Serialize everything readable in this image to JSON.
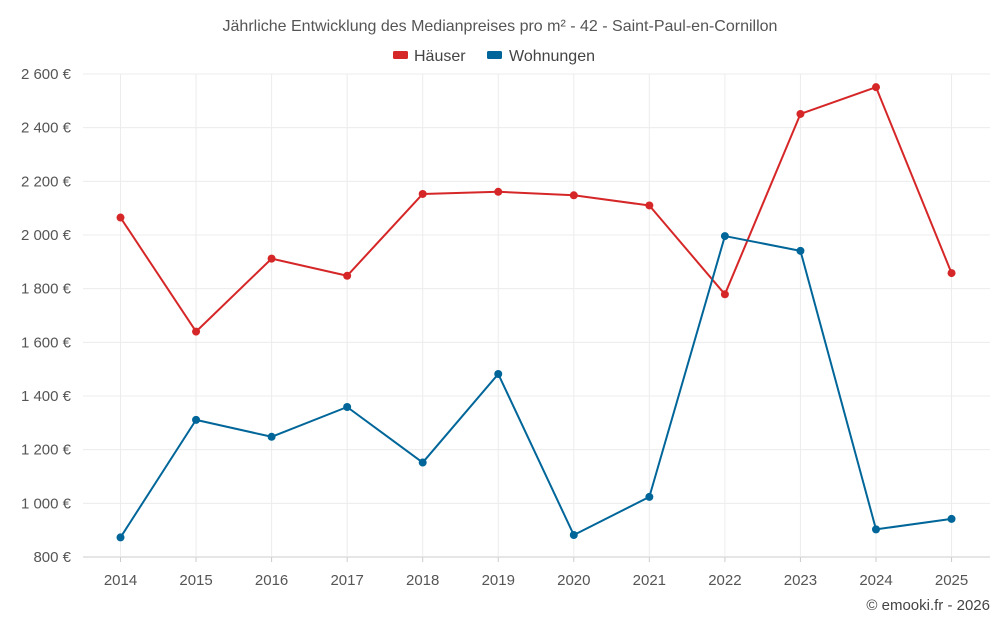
{
  "chart_data": {
    "type": "line",
    "title": "Jährliche Entwicklung des Medianpreises pro m² - 42 - Saint-Paul-en-Cornillon",
    "categories": [
      "2014",
      "2015",
      "2016",
      "2017",
      "2018",
      "2019",
      "2020",
      "2021",
      "2022",
      "2023",
      "2024",
      "2025"
    ],
    "series": [
      {
        "name": "Häuser",
        "color": "#d62728",
        "values": [
          2065,
          1640,
          1912,
          1848,
          2153,
          2161,
          2148,
          2110,
          1779,
          2451,
          2551,
          1858
        ]
      },
      {
        "name": "Wohnungen",
        "color": "#006699",
        "values": [
          873,
          1311,
          1248,
          1359,
          1152,
          1482,
          882,
          1024,
          1996,
          1941,
          903,
          942
        ]
      }
    ],
    "ylim": [
      800,
      2650
    ],
    "yticks": [
      800,
      1000,
      1200,
      1400,
      1600,
      1800,
      2000,
      2200,
      2400,
      2600
    ],
    "ytick_labels": [
      "800 €",
      "1 000 €",
      "1 200 €",
      "1 400 €",
      "1 600 €",
      "1 800 €",
      "2 000 €",
      "2 200 €",
      "2 400 €",
      "2 600 €"
    ],
    "xlabel": "",
    "ylabel": "",
    "grid": true,
    "legend_position": "top-center"
  },
  "copyright": "© emooki.fr - 2026"
}
